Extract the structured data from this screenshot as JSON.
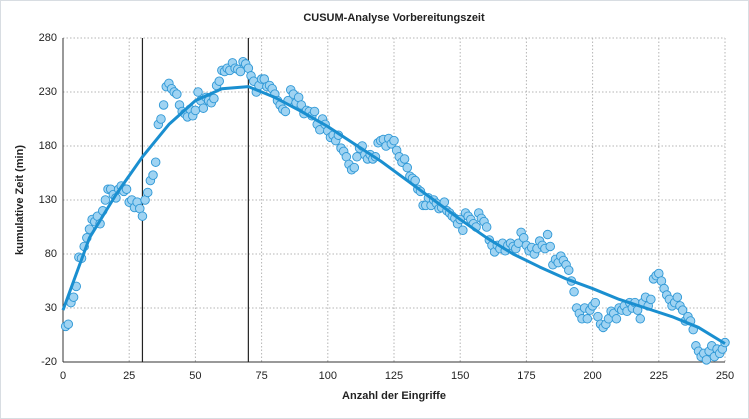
{
  "chart_data": {
    "type": "scatter",
    "title": "CUSUM-Analyse Vorbereitungszeit",
    "x_label": "Anzahl der Eingriffe",
    "y_label": "kumulative Zeit (min)",
    "xlim": [
      0,
      250
    ],
    "xticks": [
      0,
      25,
      50,
      75,
      100,
      125,
      150,
      175,
      200,
      225,
      250
    ],
    "ylim": [
      -20,
      280
    ],
    "yticks": [
      -20,
      30,
      80,
      130,
      180,
      230,
      280
    ],
    "grid": true,
    "vlines": [
      30,
      70
    ],
    "series": [
      {
        "color": "#9fd3f2",
        "edge_color": "#2f98d6",
        "x": [
          1,
          2,
          3,
          4,
          5,
          6,
          7,
          8,
          9,
          10,
          11,
          12,
          13,
          14,
          15,
          16,
          17,
          18,
          19,
          20,
          21,
          22,
          23,
          24,
          25,
          26,
          27,
          28,
          29,
          30,
          31,
          32,
          33,
          34,
          35,
          36,
          37,
          38,
          39,
          40,
          41,
          42,
          43,
          44,
          45,
          46,
          47,
          48,
          49,
          50,
          51,
          52,
          53,
          54,
          55,
          56,
          57,
          58,
          59,
          60,
          61,
          62,
          63,
          64,
          65,
          66,
          67,
          68,
          69,
          70,
          71,
          72,
          73,
          74,
          75,
          76,
          77,
          78,
          79,
          80,
          81,
          82,
          83,
          84,
          85,
          86,
          87,
          88,
          89,
          90,
          91,
          92,
          93,
          94,
          95,
          96,
          97,
          98,
          99,
          100,
          101,
          102,
          103,
          104,
          105,
          106,
          107,
          108,
          109,
          110,
          111,
          112,
          113,
          114,
          115,
          116,
          117,
          118,
          119,
          120,
          121,
          122,
          123,
          124,
          125,
          126,
          127,
          128,
          129,
          130,
          131,
          132,
          133,
          134,
          135,
          136,
          137,
          138,
          139,
          140,
          141,
          142,
          143,
          144,
          145,
          146,
          147,
          148,
          149,
          150,
          151,
          152,
          153,
          154,
          155,
          156,
          157,
          158,
          159,
          160,
          161,
          162,
          163,
          164,
          165,
          166,
          167,
          168,
          169,
          170,
          171,
          172,
          173,
          174,
          175,
          176,
          177,
          178,
          179,
          180,
          181,
          182,
          183,
          184,
          185,
          186,
          187,
          188,
          189,
          190,
          191,
          192,
          193,
          194,
          195,
          196,
          197,
          198,
          199,
          200,
          201,
          202,
          203,
          204,
          205,
          206,
          207,
          208,
          209,
          210,
          211,
          212,
          213,
          214,
          215,
          216,
          217,
          218,
          219,
          220,
          221,
          222,
          223,
          224,
          225,
          226,
          227,
          228,
          229,
          230,
          231,
          232,
          233,
          234,
          235,
          236,
          237,
          238,
          239,
          240,
          241,
          242,
          243,
          244,
          245,
          246,
          247,
          248,
          249,
          250
        ],
        "values": [
          13,
          15,
          35,
          40,
          50,
          77,
          76,
          87,
          95,
          103,
          112,
          110,
          115,
          108,
          120,
          130,
          140,
          140,
          135,
          132,
          140,
          143,
          138,
          140,
          128,
          130,
          123,
          128,
          122,
          115,
          130,
          137,
          148,
          153,
          165,
          200,
          205,
          218,
          235,
          238,
          233,
          230,
          228,
          218,
          212,
          210,
          207,
          214,
          208,
          213,
          230,
          222,
          215,
          225,
          222,
          220,
          224,
          236,
          240,
          250,
          249,
          252,
          250,
          257,
          252,
          251,
          249,
          258,
          256,
          252,
          245,
          240,
          230,
          236,
          242,
          242,
          235,
          236,
          233,
          228,
          222,
          218,
          214,
          212,
          222,
          232,
          228,
          220,
          225,
          218,
          210,
          213,
          212,
          208,
          212,
          200,
          195,
          205,
          200,
          194,
          188,
          190,
          185,
          190,
          178,
          175,
          170,
          163,
          158,
          160,
          170,
          178,
          180,
          172,
          168,
          172,
          168,
          170,
          183,
          185,
          186,
          180,
          187,
          182,
          185,
          176,
          170,
          165,
          168,
          160,
          152,
          150,
          148,
          140,
          138,
          125,
          125,
          132,
          125,
          130,
          127,
          122,
          123,
          128,
          120,
          118,
          115,
          113,
          108,
          112,
          102,
          118,
          115,
          112,
          108,
          105,
          118,
          113,
          110,
          105,
          93,
          88,
          82,
          88,
          85,
          90,
          83,
          88,
          90,
          87,
          85,
          90,
          100,
          95,
          88,
          83,
          86,
          80,
          85,
          92,
          88,
          85,
          98,
          87,
          70,
          75,
          72,
          78,
          74,
          70,
          65,
          55,
          45,
          30,
          25,
          20,
          30,
          20,
          28,
          32,
          35,
          22,
          15,
          12,
          15,
          20,
          27,
          25,
          20,
          30,
          28,
          32,
          27,
          35,
          30,
          35,
          28,
          20,
          35,
          40,
          32,
          38,
          57,
          60,
          62,
          55,
          48,
          42,
          38,
          32,
          35,
          40,
          32,
          28,
          18,
          22,
          18,
          10,
          -5,
          -10,
          -15,
          -12,
          -18,
          -10,
          -5,
          -15,
          -8,
          -12,
          -8,
          -2
        ]
      }
    ],
    "fit": {
      "color": "#1a8fd0",
      "x": [
        0,
        10,
        20,
        30,
        40,
        50,
        60,
        70,
        80,
        90,
        100,
        110,
        120,
        130,
        140,
        150,
        160,
        170,
        180,
        190,
        200,
        210,
        220,
        230,
        240,
        250
      ],
      "values": [
        28,
        95,
        135,
        170,
        200,
        222,
        233,
        235,
        225,
        212,
        198,
        182,
        166,
        148,
        130,
        112,
        95,
        80,
        68,
        57,
        48,
        38,
        30,
        22,
        12,
        -3
      ]
    }
  }
}
